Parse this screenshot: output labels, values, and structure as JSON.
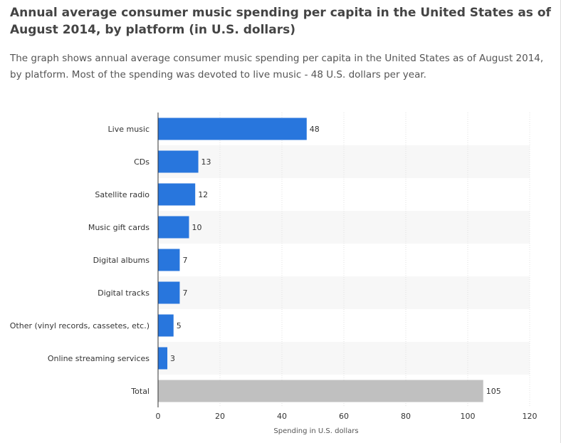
{
  "header": {
    "title": "Annual average consumer music spending per capita in the United States as of August 2014, by platform (in U.S. dollars)",
    "description": "The graph shows annual average consumer music spending per capita in the United States as of August 2014, by platform. Most of the spending was devoted to live music - 48 U.S. dollars per year."
  },
  "colors": {
    "bar": "#2876dd",
    "total_bar": "#c0c0c0",
    "band": "#f7f7f7",
    "grid": "#e2e2e2",
    "axis": "#333333",
    "text": "#333333"
  },
  "chart_data": {
    "type": "bar",
    "orientation": "horizontal",
    "categories": [
      "Live music",
      "CDs",
      "Satellite radio",
      "Music gift cards",
      "Digital albums",
      "Digital tracks",
      "Other (vinyl records, cassetes, etc.)",
      "Online streaming services",
      "Total"
    ],
    "values": [
      48,
      13,
      12,
      10,
      7,
      7,
      5,
      3,
      105
    ],
    "highlight": "Total",
    "xlabel": "Spending in U.S. dollars",
    "ylabel": "",
    "xlim": [
      0,
      120
    ],
    "xticks": [
      0,
      20,
      40,
      60,
      80,
      100,
      120
    ],
    "grid": true,
    "data_labels": true
  }
}
